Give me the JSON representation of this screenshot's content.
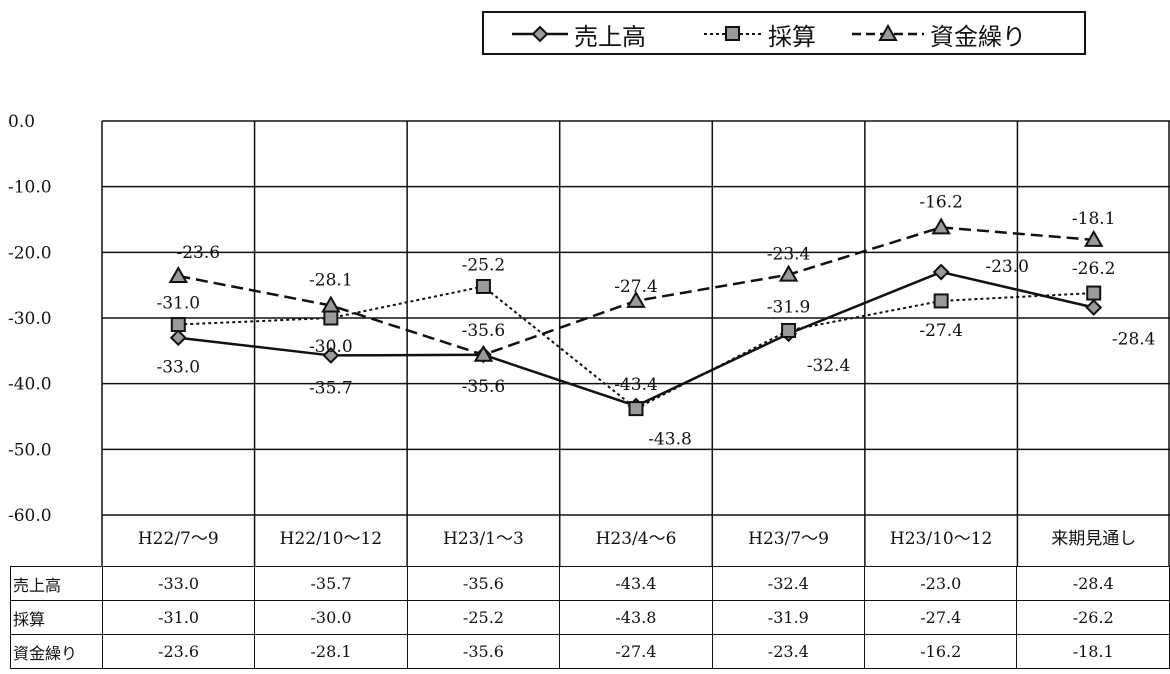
{
  "chart_data": {
    "type": "line",
    "categories": [
      "H22/7～9",
      "H22/10～12",
      "H23/1～3",
      "H23/4～6",
      "H23/7～9",
      "H23/10～12",
      "来期見通し"
    ],
    "series": [
      {
        "name": "売上高",
        "marker": "diamond",
        "line": "solid",
        "values": [
          -33.0,
          -35.7,
          -35.6,
          -43.4,
          -32.4,
          -23.0,
          -28.4
        ]
      },
      {
        "name": "採算",
        "marker": "square",
        "line": "dotted",
        "values": [
          -31.0,
          -30.0,
          -25.2,
          -43.8,
          -31.9,
          -27.4,
          -26.2
        ]
      },
      {
        "name": "資金繰り",
        "marker": "triangle",
        "line": "dashed",
        "values": [
          -23.6,
          -28.1,
          -35.6,
          -27.4,
          -23.4,
          -16.2,
          -18.1
        ]
      }
    ],
    "ylim": [
      -60.0,
      0.0
    ],
    "yticks": [
      "0.0",
      "-10.0",
      "-20.0",
      "-30.0",
      "-40.0",
      "-50.0",
      "-60.0"
    ],
    "grid": true,
    "legend_position": "top",
    "value_labels": {
      "売上高": [
        "-33.0",
        "-35.7",
        "-35.6",
        "-43.4",
        "-32.4",
        "-23.0",
        "-28.4"
      ],
      "採算": [
        "-31.0",
        "-30.0",
        "-25.2",
        "-43.8",
        "-31.9",
        "-27.4",
        "-26.2"
      ],
      "資金繰り": [
        "-23.6",
        "-28.1",
        "-35.6",
        "-27.4",
        "-23.4",
        "-16.2",
        "-18.1"
      ]
    },
    "table": {
      "rows": [
        {
          "label": "売上高",
          "cells": [
            "-33.0",
            "-35.7",
            "-35.6",
            "-43.4",
            "-32.4",
            "-23.0",
            "-28.4"
          ]
        },
        {
          "label": "採算",
          "cells": [
            "-31.0",
            "-30.0",
            "-25.2",
            "-43.8",
            "-31.9",
            "-27.4",
            "-26.2"
          ]
        },
        {
          "label": "資金繰り",
          "cells": [
            "-23.6",
            "-28.1",
            "-35.6",
            "-27.4",
            "-23.4",
            "-16.2",
            "-18.1"
          ]
        }
      ]
    }
  },
  "legend": {
    "items": [
      {
        "label": "売上高",
        "icon": "diamond-marker-icon"
      },
      {
        "label": "採算",
        "icon": "square-marker-icon"
      },
      {
        "label": "資金繰り",
        "icon": "triangle-marker-icon"
      }
    ]
  },
  "colors": {
    "line": "#111111",
    "marker_fill": "#9a9a9a",
    "grid": "#111111",
    "background": "#ffffff"
  }
}
